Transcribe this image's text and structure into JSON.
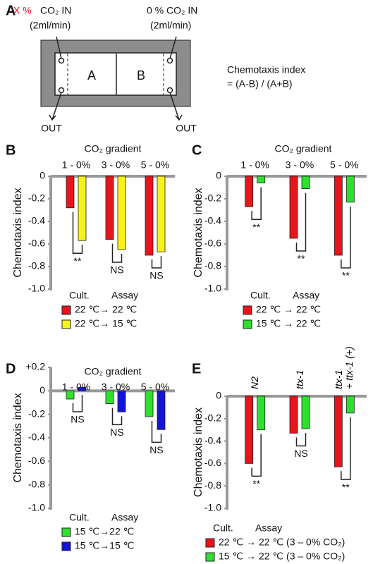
{
  "panel_a": {
    "label": "A",
    "left_inlet": {
      "percent": "X %",
      "gas": "CO₂  IN",
      "flow": "(2ml/min)"
    },
    "right_inlet": {
      "label": "0 % CO₂ IN",
      "flow": "(2ml/min)"
    },
    "chambers": [
      "A",
      "B"
    ],
    "outlets": [
      "OUT",
      "OUT"
    ],
    "formula": {
      "title": "Chemotaxis index",
      "equation": "= (A-B) / (A+B)"
    }
  },
  "chart_data": [
    {
      "type": "bar",
      "panel_label": "B",
      "title": "CO₂ gradient",
      "y_label": "Chemotaxis index",
      "categories": [
        "1 - 0%",
        "3 - 0%",
        "5 - 0%"
      ],
      "series": [
        {
          "name": "22 ℃→ 22 ℃",
          "color": "#e8141b",
          "values": [
            -0.28,
            -0.56,
            -0.7
          ]
        },
        {
          "name": "22 ℃→ 15 ℃",
          "color": "#f7f21c",
          "values": [
            -0.57,
            -0.65,
            -0.67
          ]
        }
      ],
      "significance": [
        "**",
        "NS",
        "NS"
      ],
      "legend_titles": [
        "Cult.",
        "Assay"
      ],
      "ylim": [
        -1,
        0
      ],
      "yticks": [
        0,
        -0.2,
        -0.4,
        -0.6,
        -0.8,
        {
          "value": -1,
          "label": "-1.0"
        }
      ]
    },
    {
      "type": "bar",
      "panel_label": "C",
      "title": "CO₂ gradient",
      "y_label": "Chemotaxis index",
      "categories": [
        "1 - 0%",
        "3 - 0%",
        "5 - 0%"
      ],
      "series": [
        {
          "name": "22 ℃ → 22 ℃",
          "color": "#e8141b",
          "values": [
            -0.27,
            -0.55,
            -0.7
          ]
        },
        {
          "name": "15 ℃ → 22 ℃",
          "color": "#2fe02f",
          "values": [
            -0.06,
            -0.11,
            -0.23
          ]
        }
      ],
      "significance": [
        "**",
        "**",
        "**"
      ],
      "legend_titles": [
        "Cult.",
        "Assay"
      ],
      "ylim": [
        -1,
        0
      ],
      "yticks": [
        0,
        -0.2,
        -0.4,
        -0.6,
        -0.8,
        {
          "value": -1,
          "label": "-1.0"
        }
      ]
    },
    {
      "type": "bar",
      "panel_label": "D",
      "title": "CO₂ gradient",
      "y_label": "Chemotaxis index",
      "categories": [
        "1 - 0%",
        "3 - 0%",
        "5 - 0%"
      ],
      "series": [
        {
          "name": "15 ℃→22 ℃",
          "color": "#2fe02f",
          "values": [
            -0.07,
            -0.11,
            -0.22
          ]
        },
        {
          "name": "15 ℃→15 ℃",
          "color": "#1414d8",
          "values": [
            0.03,
            -0.18,
            -0.33
          ]
        }
      ],
      "significance": [
        "NS",
        "NS",
        "NS"
      ],
      "legend_titles": [
        "Cult.",
        "Assay"
      ],
      "ylim": [
        -1,
        0.2
      ],
      "yticks": [
        {
          "value": 0.2,
          "label": "+0.2"
        },
        0,
        -0.2,
        -0.4,
        -0.6,
        -0.8,
        {
          "value": -1,
          "label": "-1.0"
        }
      ]
    },
    {
      "type": "bar",
      "panel_label": "E",
      "y_label": "Chemotaxis index",
      "categories": [
        "N2",
        "ttx-1",
        "ttx-1\n+ ttx-1 (+)"
      ],
      "series": [
        {
          "name": "22 ℃ → 22 ℃ (3 – 0% CO₂)",
          "color": "#e8141b",
          "values": [
            -0.6,
            -0.33,
            -0.63
          ]
        },
        {
          "name": "15 ℃ → 22 ℃ (3 – 0% CO₂)",
          "color": "#2fe02f",
          "values": [
            -0.3,
            -0.29,
            -0.15
          ]
        }
      ],
      "significance": [
        "**",
        "NS",
        "**"
      ],
      "legend_titles": [
        "Cult.",
        "Assay"
      ],
      "ylim": [
        -1,
        0
      ],
      "yticks": [
        0,
        -0.2,
        -0.4,
        -0.6,
        -0.8,
        {
          "value": -1,
          "label": "-1.0"
        }
      ]
    }
  ]
}
